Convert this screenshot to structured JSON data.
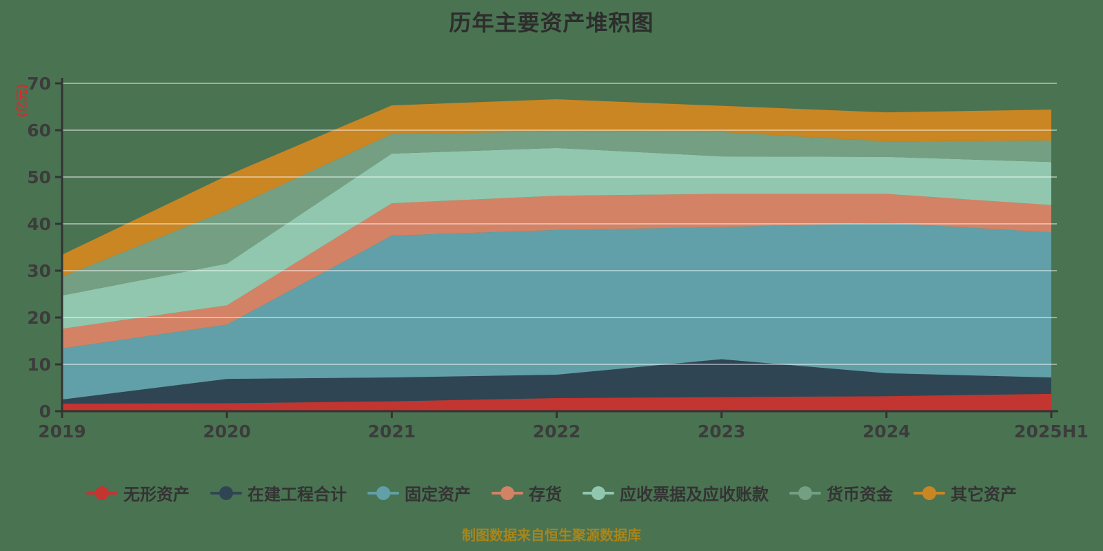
{
  "title": "历年主要资产堆积图",
  "footer": "制图数据来自恒生聚源数据库",
  "y_axis": {
    "unit_label": "(亿元)",
    "tick_values": [
      0,
      10,
      20,
      30,
      40,
      50,
      60,
      70
    ],
    "max": 70
  },
  "colors": {
    "background": "#4a7352",
    "axis_line": "#333333",
    "axis_text": "#3c3c3c",
    "gridline": "rgba(255,255,255,0.45)",
    "title_text": "#2d2d2d",
    "footer_text": "#a8851b",
    "y_unit_text": "#d42c2c"
  },
  "chart_data": {
    "type": "area",
    "stacked": true,
    "grid": true,
    "legend_position": "bottom",
    "title": "历年主要资产堆积图",
    "ylabel": "(亿元)",
    "ylim": [
      0,
      70
    ],
    "categories": [
      "2019",
      "2020",
      "2021",
      "2022",
      "2023",
      "2024",
      "2025H1"
    ],
    "series": [
      {
        "name": "无形资产",
        "color": "#c23531",
        "values": [
          1.6,
          1.7,
          2.1,
          2.8,
          3.0,
          3.2,
          3.7
        ]
      },
      {
        "name": "在建工程合计",
        "color": "#2f4554",
        "values": [
          0.9,
          5.2,
          5.1,
          5.0,
          8.1,
          4.9,
          3.5
        ]
      },
      {
        "name": "固定资产",
        "color": "#61a0a8",
        "values": [
          10.9,
          11.6,
          30.3,
          30.9,
          28.2,
          32.1,
          31.0
        ]
      },
      {
        "name": "存货",
        "color": "#d48265",
        "values": [
          4.2,
          4.1,
          6.9,
          7.3,
          7.1,
          6.2,
          5.8
        ]
      },
      {
        "name": "应收票据及应收账款",
        "color": "#91c7ae",
        "values": [
          7.1,
          8.9,
          10.6,
          10.2,
          8.0,
          7.9,
          9.2
        ]
      },
      {
        "name": "货币资金",
        "color": "#749f83",
        "values": [
          4.0,
          11.4,
          4.2,
          3.5,
          5.2,
          3.3,
          4.6
        ]
      },
      {
        "name": "其它资产",
        "color": "#ca8622",
        "values": [
          4.7,
          7.4,
          6.1,
          6.9,
          5.6,
          6.2,
          6.6
        ]
      }
    ],
    "totals": [
      33.4,
      50.3,
      65.3,
      66.6,
      65.2,
      63.8,
      64.4
    ]
  }
}
